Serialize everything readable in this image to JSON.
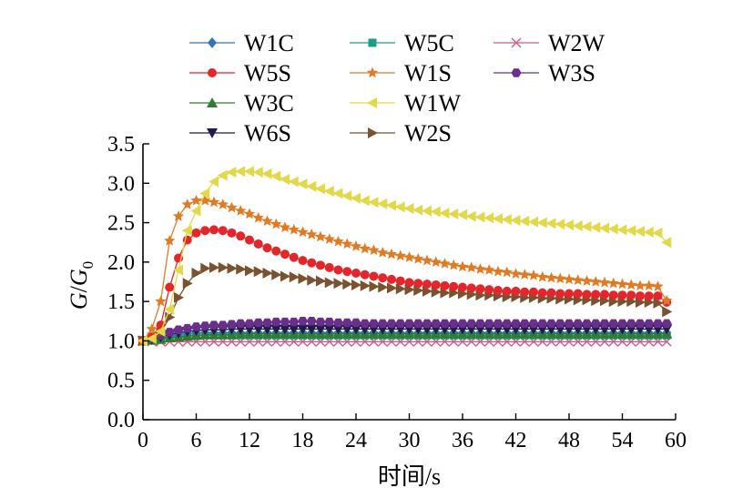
{
  "chart_data": {
    "type": "line",
    "title": "",
    "xlabel": "时间/s",
    "ylabel_main": "G",
    "ylabel_slash": "/",
    "ylabel_denominator": "G",
    "ylabel_subscript": "0",
    "xlim": [
      0,
      60
    ],
    "ylim": [
      0.0,
      3.5
    ],
    "x_ticks": [
      "0",
      "6",
      "12",
      "18",
      "24",
      "30",
      "36",
      "42",
      "48",
      "54",
      "60"
    ],
    "y_ticks": [
      "0.0",
      "0.5",
      "1.0",
      "1.5",
      "2.0",
      "2.5",
      "3.0",
      "3.5"
    ],
    "grid": false,
    "legend_position": "top",
    "sample_interval": 1,
    "series": [
      {
        "name": "W1C",
        "color": "#2e75b6",
        "marker": "diamond",
        "values": [
          1.0,
          1.02,
          1.04,
          1.06,
          1.08,
          1.09,
          1.1,
          1.1,
          1.1,
          1.1,
          1.1,
          1.1,
          1.1,
          1.1,
          1.1,
          1.1,
          1.1,
          1.1,
          1.1,
          1.1,
          1.1,
          1.1,
          1.1,
          1.1,
          1.1,
          1.1,
          1.1,
          1.1,
          1.1,
          1.1,
          1.1,
          1.1,
          1.1,
          1.1,
          1.1,
          1.1,
          1.1,
          1.1,
          1.1,
          1.1,
          1.1,
          1.1,
          1.1,
          1.1,
          1.1,
          1.1,
          1.1,
          1.1,
          1.1,
          1.1,
          1.1,
          1.1,
          1.1,
          1.1,
          1.1,
          1.1,
          1.1,
          1.1,
          1.1,
          1.1
        ]
      },
      {
        "name": "W5S",
        "color": "#e3262b",
        "marker": "circle",
        "values": [
          1.0,
          1.05,
          1.2,
          1.68,
          2.05,
          2.28,
          2.37,
          2.4,
          2.41,
          2.4,
          2.37,
          2.33,
          2.28,
          2.23,
          2.18,
          2.14,
          2.1,
          2.06,
          2.02,
          1.99,
          1.96,
          1.93,
          1.9,
          1.88,
          1.86,
          1.84,
          1.82,
          1.8,
          1.78,
          1.76,
          1.74,
          1.73,
          1.72,
          1.71,
          1.7,
          1.69,
          1.68,
          1.67,
          1.66,
          1.65,
          1.64,
          1.63,
          1.63,
          1.62,
          1.62,
          1.61,
          1.61,
          1.6,
          1.6,
          1.6,
          1.59,
          1.59,
          1.59,
          1.58,
          1.58,
          1.58,
          1.57,
          1.57,
          1.57,
          1.49
        ]
      },
      {
        "name": "W3C",
        "color": "#2e7d32",
        "marker": "triangle-up",
        "values": [
          1.0,
          1.01,
          1.02,
          1.04,
          1.05,
          1.06,
          1.07,
          1.08,
          1.08,
          1.08,
          1.08,
          1.09,
          1.09,
          1.09,
          1.09,
          1.09,
          1.09,
          1.09,
          1.09,
          1.09,
          1.09,
          1.09,
          1.09,
          1.09,
          1.09,
          1.09,
          1.09,
          1.09,
          1.09,
          1.09,
          1.09,
          1.09,
          1.09,
          1.09,
          1.09,
          1.09,
          1.09,
          1.09,
          1.09,
          1.09,
          1.09,
          1.09,
          1.09,
          1.09,
          1.09,
          1.09,
          1.09,
          1.09,
          1.09,
          1.09,
          1.09,
          1.09,
          1.09,
          1.09,
          1.09,
          1.09,
          1.09,
          1.09,
          1.09,
          1.09
        ]
      },
      {
        "name": "W6S",
        "color": "#1f1b4a",
        "marker": "triangle-down",
        "values": [
          1.0,
          1.02,
          1.05,
          1.08,
          1.1,
          1.12,
          1.13,
          1.14,
          1.14,
          1.14,
          1.15,
          1.15,
          1.15,
          1.15,
          1.15,
          1.15,
          1.15,
          1.15,
          1.15,
          1.15,
          1.15,
          1.15,
          1.15,
          1.15,
          1.15,
          1.15,
          1.15,
          1.15,
          1.15,
          1.15,
          1.15,
          1.15,
          1.15,
          1.15,
          1.15,
          1.15,
          1.15,
          1.15,
          1.15,
          1.15,
          1.15,
          1.15,
          1.15,
          1.15,
          1.15,
          1.15,
          1.15,
          1.15,
          1.15,
          1.15,
          1.15,
          1.15,
          1.15,
          1.15,
          1.15,
          1.15,
          1.15,
          1.15,
          1.15,
          1.15
        ]
      },
      {
        "name": "W5C",
        "color": "#1c9a8e",
        "marker": "square",
        "values": [
          1.0,
          1.01,
          1.03,
          1.05,
          1.06,
          1.07,
          1.07,
          1.07,
          1.07,
          1.07,
          1.07,
          1.07,
          1.07,
          1.07,
          1.07,
          1.07,
          1.07,
          1.07,
          1.07,
          1.07,
          1.07,
          1.07,
          1.07,
          1.07,
          1.07,
          1.07,
          1.07,
          1.07,
          1.07,
          1.07,
          1.07,
          1.07,
          1.07,
          1.07,
          1.07,
          1.07,
          1.07,
          1.07,
          1.07,
          1.07,
          1.07,
          1.07,
          1.07,
          1.07,
          1.07,
          1.07,
          1.07,
          1.07,
          1.07,
          1.07,
          1.07,
          1.07,
          1.07,
          1.07,
          1.07,
          1.07,
          1.07,
          1.07,
          1.07,
          1.07
        ]
      },
      {
        "name": "W1S",
        "color": "#e07b24",
        "marker": "star",
        "values": [
          1.0,
          1.15,
          1.5,
          2.27,
          2.58,
          2.73,
          2.78,
          2.78,
          2.76,
          2.73,
          2.69,
          2.65,
          2.61,
          2.56,
          2.52,
          2.48,
          2.44,
          2.41,
          2.38,
          2.35,
          2.32,
          2.29,
          2.26,
          2.23,
          2.2,
          2.17,
          2.15,
          2.12,
          2.1,
          2.08,
          2.06,
          2.04,
          2.02,
          2.0,
          1.98,
          1.96,
          1.94,
          1.93,
          1.91,
          1.9,
          1.88,
          1.87,
          1.85,
          1.84,
          1.83,
          1.81,
          1.8,
          1.79,
          1.78,
          1.77,
          1.76,
          1.75,
          1.74,
          1.73,
          1.72,
          1.71,
          1.7,
          1.7,
          1.69,
          1.51
        ]
      },
      {
        "name": "W1W",
        "color": "#e2d94a",
        "marker": "triangle-left",
        "values": [
          1.0,
          1.03,
          1.12,
          1.4,
          1.9,
          2.4,
          2.65,
          2.87,
          3.02,
          3.1,
          3.14,
          3.15,
          3.15,
          3.14,
          3.12,
          3.09,
          3.05,
          3.02,
          2.99,
          2.96,
          2.93,
          2.9,
          2.87,
          2.84,
          2.81,
          2.78,
          2.76,
          2.74,
          2.72,
          2.7,
          2.68,
          2.66,
          2.65,
          2.64,
          2.62,
          2.61,
          2.6,
          2.58,
          2.57,
          2.56,
          2.55,
          2.54,
          2.53,
          2.52,
          2.51,
          2.5,
          2.49,
          2.48,
          2.47,
          2.46,
          2.45,
          2.44,
          2.43,
          2.42,
          2.41,
          2.4,
          2.39,
          2.38,
          2.37,
          2.25
        ]
      },
      {
        "name": "W2S",
        "color": "#7a5230",
        "marker": "triangle-right",
        "values": [
          1.0,
          1.04,
          1.1,
          1.3,
          1.55,
          1.73,
          1.86,
          1.92,
          1.93,
          1.93,
          1.92,
          1.91,
          1.89,
          1.88,
          1.86,
          1.84,
          1.82,
          1.81,
          1.79,
          1.77,
          1.76,
          1.74,
          1.73,
          1.72,
          1.71,
          1.7,
          1.69,
          1.68,
          1.67,
          1.66,
          1.65,
          1.64,
          1.63,
          1.62,
          1.61,
          1.61,
          1.6,
          1.59,
          1.58,
          1.58,
          1.57,
          1.56,
          1.56,
          1.55,
          1.55,
          1.54,
          1.54,
          1.53,
          1.53,
          1.52,
          1.52,
          1.51,
          1.51,
          1.5,
          1.5,
          1.5,
          1.49,
          1.49,
          1.48,
          1.37
        ]
      },
      {
        "name": "W2W",
        "color": "#d45a8a",
        "marker": "cross",
        "values": [
          1.0,
          0.99,
          0.99,
          0.99,
          0.99,
          0.99,
          0.99,
          0.99,
          0.99,
          0.99,
          0.99,
          0.99,
          0.99,
          0.99,
          0.99,
          0.99,
          0.99,
          0.99,
          0.99,
          0.99,
          0.99,
          0.99,
          0.99,
          0.99,
          0.99,
          0.99,
          0.99,
          0.99,
          0.99,
          0.99,
          0.99,
          0.99,
          0.99,
          0.99,
          0.99,
          0.99,
          0.99,
          0.99,
          0.99,
          0.99,
          0.99,
          0.99,
          0.99,
          0.99,
          0.99,
          0.99,
          0.99,
          0.99,
          0.99,
          0.99,
          0.99,
          0.99,
          0.99,
          0.99,
          0.99,
          0.99,
          0.99,
          0.99,
          0.99,
          0.99
        ]
      },
      {
        "name": "W3S",
        "color": "#6a2e8c",
        "marker": "hexagon",
        "values": [
          1.0,
          1.03,
          1.07,
          1.11,
          1.14,
          1.16,
          1.18,
          1.19,
          1.2,
          1.2,
          1.21,
          1.22,
          1.22,
          1.23,
          1.23,
          1.24,
          1.24,
          1.24,
          1.25,
          1.25,
          1.24,
          1.24,
          1.23,
          1.23,
          1.23,
          1.22,
          1.22,
          1.22,
          1.22,
          1.22,
          1.22,
          1.22,
          1.22,
          1.22,
          1.22,
          1.22,
          1.22,
          1.22,
          1.22,
          1.22,
          1.22,
          1.22,
          1.22,
          1.22,
          1.22,
          1.22,
          1.22,
          1.22,
          1.22,
          1.22,
          1.22,
          1.22,
          1.22,
          1.22,
          1.22,
          1.22,
          1.22,
          1.22,
          1.22,
          1.22
        ]
      }
    ]
  }
}
